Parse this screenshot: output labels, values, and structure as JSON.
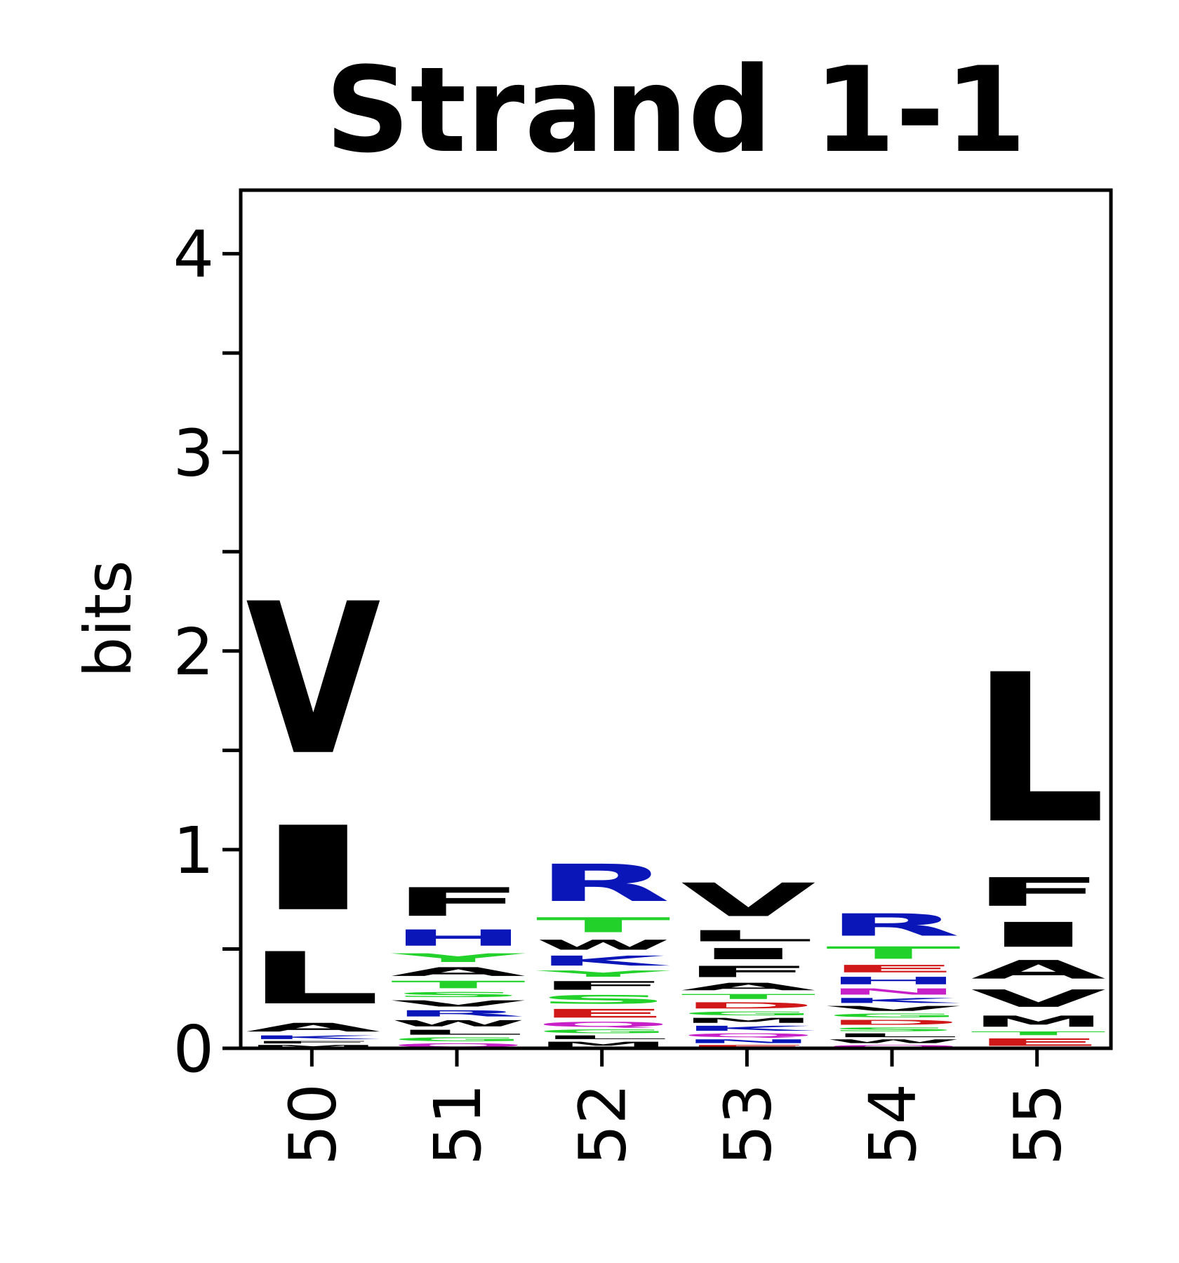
{
  "chart_data": {
    "type": "logo",
    "title": "Strand 1-1",
    "ylabel": "bits",
    "categories": [
      "50",
      "51",
      "52",
      "53",
      "54",
      "55"
    ],
    "ylim": [
      0,
      4.32
    ],
    "yticks": [
      0,
      1,
      2,
      3,
      4
    ],
    "minor_yticks": [
      0.5,
      1.5,
      2.5,
      3.5
    ],
    "columns": [
      [
        {
          "letter": "M",
          "value": 0.02,
          "color": "#000000"
        },
        {
          "letter": "F",
          "value": 0.02,
          "color": "#000000"
        },
        {
          "letter": "K",
          "value": 0.03,
          "color": "#0a16b8"
        },
        {
          "letter": "A",
          "value": 0.07,
          "color": "#000000"
        },
        {
          "letter": "L",
          "value": 0.42,
          "color": "#000000"
        },
        {
          "letter": "I",
          "value": 0.68,
          "color": "#000000"
        },
        {
          "letter": "V",
          "value": 1.22,
          "color": "#000000"
        }
      ],
      [
        {
          "letter": "Q",
          "value": 0.03,
          "color": "#c820c8"
        },
        {
          "letter": "G",
          "value": 0.03,
          "color": "#22d22a"
        },
        {
          "letter": "L",
          "value": 0.04,
          "color": "#000000"
        },
        {
          "letter": "W",
          "value": 0.05,
          "color": "#000000"
        },
        {
          "letter": "R",
          "value": 0.05,
          "color": "#0a16b8"
        },
        {
          "letter": "V",
          "value": 0.05,
          "color": "#000000"
        },
        {
          "letter": "S",
          "value": 0.04,
          "color": "#22d22a"
        },
        {
          "letter": "T",
          "value": 0.06,
          "color": "#22d22a"
        },
        {
          "letter": "A",
          "value": 0.07,
          "color": "#000000"
        },
        {
          "letter": "Y",
          "value": 0.07,
          "color": "#22d22a"
        },
        {
          "letter": "H",
          "value": 0.13,
          "color": "#0a16b8"
        },
        {
          "letter": "F",
          "value": 0.23,
          "color": "#000000"
        }
      ],
      [
        {
          "letter": "M",
          "value": 0.04,
          "color": "#000000"
        },
        {
          "letter": "L",
          "value": 0.03,
          "color": "#000000"
        },
        {
          "letter": "G",
          "value": 0.03,
          "color": "#22d22a"
        },
        {
          "letter": "Q",
          "value": 0.04,
          "color": "#c820c8"
        },
        {
          "letter": "E",
          "value": 0.07,
          "color": "#d01818"
        },
        {
          "letter": "S",
          "value": 0.07,
          "color": "#22d22a"
        },
        {
          "letter": "F",
          "value": 0.07,
          "color": "#000000"
        },
        {
          "letter": "Y",
          "value": 0.05,
          "color": "#22d22a"
        },
        {
          "letter": "K",
          "value": 0.08,
          "color": "#0a16b8"
        },
        {
          "letter": "W",
          "value": 0.08,
          "color": "#000000"
        },
        {
          "letter": "T",
          "value": 0.12,
          "color": "#22d22a"
        },
        {
          "letter": "R",
          "value": 0.3,
          "color": "#0a16b8"
        }
      ],
      [
        {
          "letter": "E",
          "value": 0.02,
          "color": "#d01818"
        },
        {
          "letter": "N",
          "value": 0.03,
          "color": "#0a16b8"
        },
        {
          "letter": "Q",
          "value": 0.03,
          "color": "#c820c8"
        },
        {
          "letter": "K",
          "value": 0.04,
          "color": "#0a16b8"
        },
        {
          "letter": "M",
          "value": 0.04,
          "color": "#000000"
        },
        {
          "letter": "G",
          "value": 0.03,
          "color": "#22d22a"
        },
        {
          "letter": "D",
          "value": 0.05,
          "color": "#d01818"
        },
        {
          "letter": "T",
          "value": 0.04,
          "color": "#22d22a"
        },
        {
          "letter": "A",
          "value": 0.06,
          "color": "#000000"
        },
        {
          "letter": "F",
          "value": 0.09,
          "color": "#000000"
        },
        {
          "letter": "I",
          "value": 0.09,
          "color": "#000000"
        },
        {
          "letter": "L",
          "value": 0.09,
          "color": "#000000"
        },
        {
          "letter": "V",
          "value": 0.27,
          "color": "#000000"
        }
      ],
      [
        {
          "letter": "Q",
          "value": 0.02,
          "color": "#c820c8"
        },
        {
          "letter": "W",
          "value": 0.03,
          "color": "#000000"
        },
        {
          "letter": "L",
          "value": 0.03,
          "color": "#000000"
        },
        {
          "letter": "S",
          "value": 0.03,
          "color": "#22d22a"
        },
        {
          "letter": "D",
          "value": 0.04,
          "color": "#d01818"
        },
        {
          "letter": "G",
          "value": 0.03,
          "color": "#22d22a"
        },
        {
          "letter": "V",
          "value": 0.04,
          "color": "#000000"
        },
        {
          "letter": "K",
          "value": 0.04,
          "color": "#0a16b8"
        },
        {
          "letter": "N",
          "value": 0.05,
          "color": "#c820c8"
        },
        {
          "letter": "H",
          "value": 0.06,
          "color": "#0a16b8"
        },
        {
          "letter": "E",
          "value": 0.06,
          "color": "#d01818"
        },
        {
          "letter": "T",
          "value": 0.1,
          "color": "#22d22a"
        },
        {
          "letter": "R",
          "value": 0.18,
          "color": "#0a16b8"
        }
      ],
      [
        {
          "letter": "E",
          "value": 0.06,
          "color": "#d01818"
        },
        {
          "letter": "T",
          "value": 0.03,
          "color": "#22d22a"
        },
        {
          "letter": "M",
          "value": 0.09,
          "color": "#000000"
        },
        {
          "letter": "V",
          "value": 0.14,
          "color": "#000000"
        },
        {
          "letter": "A",
          "value": 0.15,
          "color": "#000000"
        },
        {
          "letter": "I",
          "value": 0.2,
          "color": "#000000"
        },
        {
          "letter": "F",
          "value": 0.23,
          "color": "#000000"
        },
        {
          "letter": "L",
          "value": 1.2,
          "color": "#000000"
        }
      ]
    ]
  }
}
